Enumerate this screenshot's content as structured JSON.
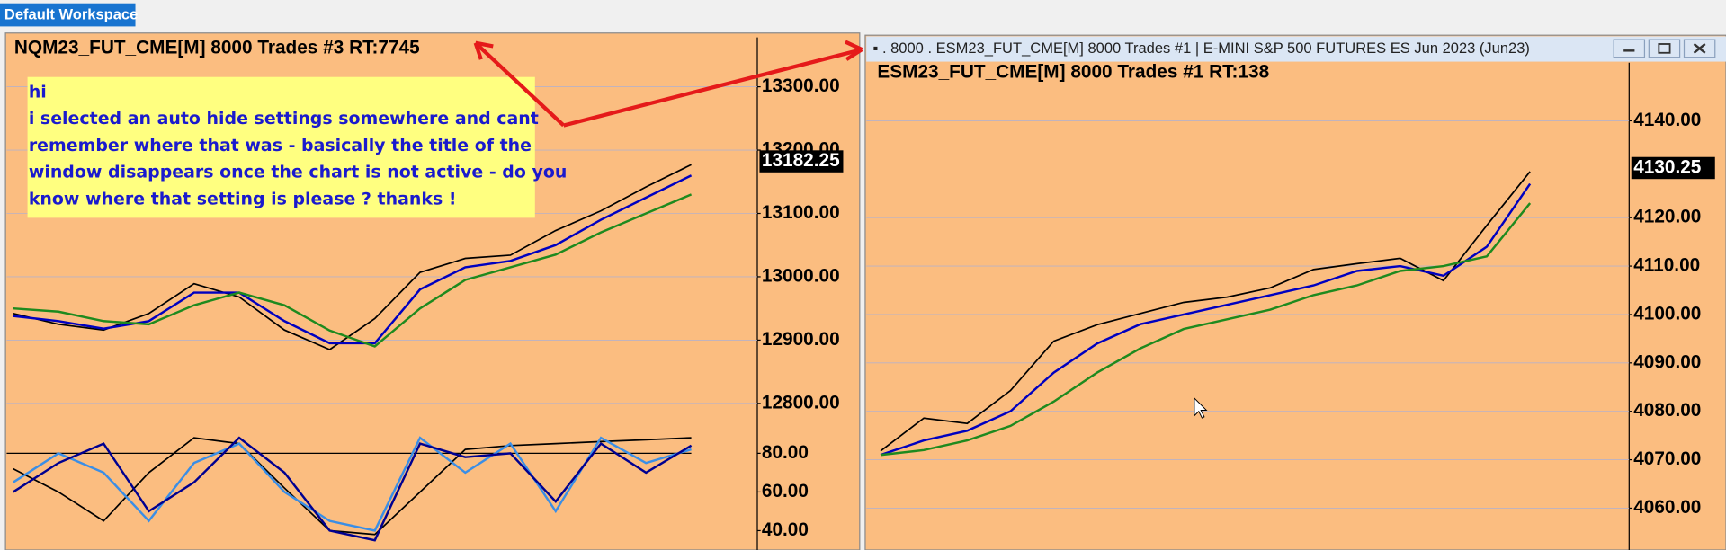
{
  "workspace_tab": "Default Workspace",
  "annotation": [
    "hi",
    "i selected an auto hide settings somewhere and cant",
    "remember where that was - basically the title of the",
    "window disappears once the chart is not active - do you",
    "know where that setting is please ? thanks !"
  ],
  "right_window_title": "▪ .   8000   . ESM23_FUT_CME[M]  8000 Trades  #1 | E-MINI S&P 500 FUTURES ES Jun 2023 (Jun23)",
  "chart_data": [
    {
      "type": "line",
      "title": "NQM23_FUT_CME[M]  8000 Trades  #3 RT:7745",
      "categories": [
        null,
        null,
        null,
        null,
        null,
        null,
        null,
        null,
        null,
        null,
        null,
        null,
        null,
        null,
        null,
        null
      ],
      "series": [
        {
          "color": "#000000",
          "values": [
            12942,
            12925,
            12916,
            12942,
            12989,
            12968,
            12916,
            12885,
            12934,
            13007,
            13029,
            13034,
            13073,
            13104,
            13142,
            13177
          ]
        },
        {
          "color": "#0000c0",
          "values": [
            12938,
            12930,
            12918,
            12930,
            12975,
            12975,
            12930,
            12895,
            12895,
            12980,
            13015,
            13025,
            13050,
            13090,
            13125,
            13160
          ]
        },
        {
          "color": "#1e8a1e",
          "values": [
            12950,
            12945,
            12930,
            12925,
            12955,
            12975,
            12955,
            12915,
            12890,
            12950,
            12995,
            13015,
            13035,
            13070,
            13100,
            13130
          ]
        }
      ],
      "ylim": [
        12770,
        13378
      ],
      "yticks": [
        {
          "value": 12800,
          "label": "12800.00"
        },
        {
          "value": 12900,
          "label": "12900.00"
        },
        {
          "value": 13000,
          "label": "13000.00"
        },
        {
          "value": 13100,
          "label": "13100.00"
        },
        {
          "value": 13200,
          "label": "13200.00"
        },
        {
          "value": 13300,
          "label": "13300.00"
        }
      ],
      "last_price": 13182.25,
      "grid": true
    },
    {
      "type": "line",
      "categories": [
        null,
        null,
        null,
        null,
        null,
        null,
        null,
        null,
        null,
        null,
        null,
        null,
        null,
        null,
        null,
        null
      ],
      "series": [
        {
          "color": "#000000",
          "values": [
            72,
            60,
            45,
            70,
            88,
            85,
            62,
            40,
            38,
            60,
            82,
            84,
            85,
            86,
            87,
            88
          ]
        },
        {
          "color": "#3a8ee6",
          "values": [
            65,
            80,
            70,
            45,
            75,
            85,
            60,
            45,
            40,
            88,
            70,
            85,
            50,
            88,
            75,
            82
          ]
        },
        {
          "color": "#000090",
          "values": [
            60,
            75,
            85,
            50,
            65,
            88,
            70,
            40,
            35,
            85,
            78,
            80,
            55,
            85,
            70,
            84
          ]
        }
      ],
      "ylim": [
        30,
        92
      ],
      "yticks": [
        {
          "value": 40,
          "label": "40.00"
        },
        {
          "value": 60,
          "label": "60.00"
        },
        {
          "value": 80,
          "label": "80.00"
        }
      ],
      "reference_line": 80,
      "grid": false
    },
    {
      "type": "line",
      "title": "ESM23_FUT_CME[M]  8000 Trades  #1 RT:138",
      "categories": [
        null,
        null,
        null,
        null,
        null,
        null,
        null,
        null,
        null,
        null,
        null,
        null,
        null,
        null,
        null,
        null
      ],
      "series": [
        {
          "color": "#000000",
          "values": [
            4071.8,
            4078.6,
            4077.5,
            4084.3,
            4094.5,
            4097.9,
            4100.2,
            4102.5,
            4103.6,
            4105.5,
            4109.3,
            4110.5,
            4111.6,
            4107.0,
            4118.4,
            4129.5
          ]
        },
        {
          "color": "#0000c0",
          "values": [
            4071,
            4074,
            4076,
            4080,
            4088,
            4094,
            4098,
            4100,
            4102,
            4104,
            4106,
            4109,
            4110,
            4108,
            4114,
            4127
          ]
        },
        {
          "color": "#1e8a1e",
          "values": [
            4071,
            4072,
            4074,
            4077,
            4082,
            4088,
            4093,
            4097,
            4099,
            4101,
            4104,
            4106,
            4109,
            4110,
            4112,
            4123
          ]
        }
      ],
      "ylim": [
        4055,
        4152
      ],
      "yticks": [
        {
          "value": 4060,
          "label": "4060.00"
        },
        {
          "value": 4070,
          "label": "4070.00"
        },
        {
          "value": 4080,
          "label": "4080.00"
        },
        {
          "value": 4090,
          "label": "4090.00"
        },
        {
          "value": 4100,
          "label": "4100.00"
        },
        {
          "value": 4110,
          "label": "4110.00"
        },
        {
          "value": 4120,
          "label": "4120.00"
        },
        {
          "value": 4140,
          "label": "4140.00"
        }
      ],
      "last_price": 4130.25,
      "grid": true
    }
  ]
}
